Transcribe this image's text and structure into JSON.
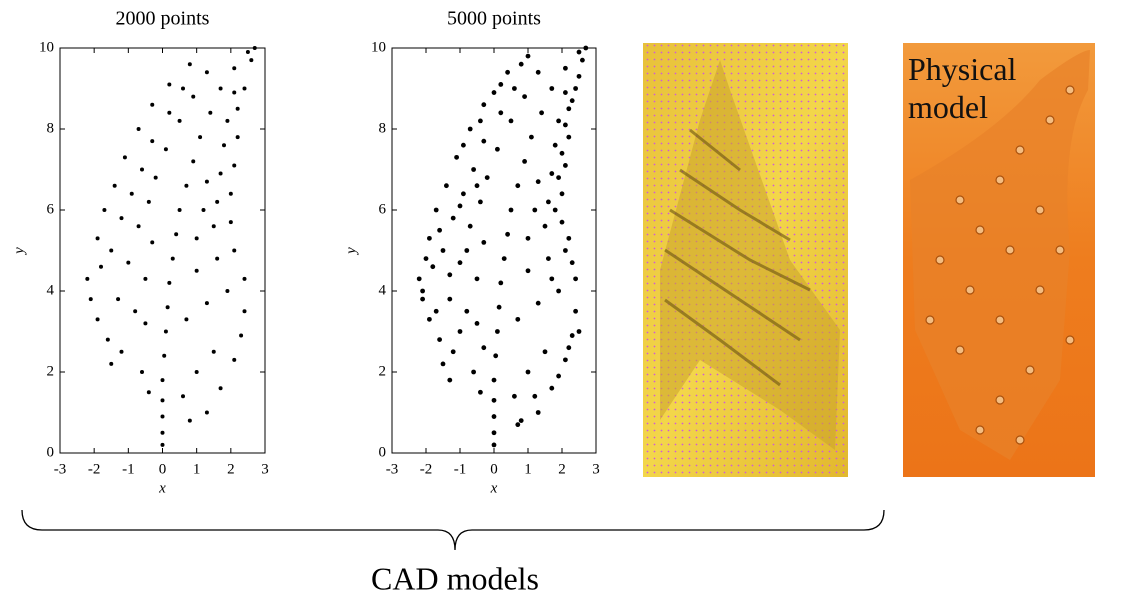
{
  "chart_data": [
    {
      "type": "scatter",
      "title": "2000 points",
      "xlabel": "x",
      "ylabel": "y",
      "color": "#000000",
      "xlim": [
        -3,
        3
      ],
      "ylim": [
        0,
        10
      ],
      "xticks": [
        -3,
        -2,
        -1,
        0,
        1,
        2,
        3
      ],
      "yticks": [
        0,
        2,
        4,
        6,
        8,
        10
      ],
      "x": [
        0,
        0,
        0,
        0,
        0,
        0.05,
        0.1,
        0.15,
        0.2,
        0.3,
        0.4,
        0.5,
        0.7,
        0.9,
        1.1,
        1.4,
        1.7,
        2.1,
        2.5,
        -2.2,
        -2.1,
        -1.9,
        -1.6,
        -1.5,
        -1.8,
        -1.3,
        -0.8,
        -0.5,
        -1.2,
        -0.6,
        -0.4,
        -1.9,
        -1.5,
        -1.0,
        -0.5,
        -1.7,
        -1.2,
        -0.7,
        -0.3,
        -1.4,
        -0.9,
        -0.4,
        -1.1,
        -0.6,
        -0.2,
        -0.7,
        -0.3,
        0.1,
        -0.3,
        0.2,
        0.5,
        0.2,
        0.6,
        0.9,
        0.8,
        1.3,
        2.4,
        2.3,
        2.1,
        1.7,
        1.3,
        0.8,
        1.5,
        1.0,
        0.6,
        2.4,
        1.9,
        1.3,
        0.7,
        2.1,
        1.6,
        1.0,
        2.0,
        1.5,
        1.0,
        2.0,
        1.6,
        1.2,
        2.1,
        1.7,
        1.3,
        2.2,
        1.8,
        2.2,
        1.9,
        2.4,
        2.1,
        2.6,
        2.7
      ],
      "values": [
        0.2,
        0.5,
        0.9,
        1.3,
        1.8,
        2.4,
        3,
        3.6,
        4.2,
        4.8,
        5.4,
        6,
        6.6,
        7.2,
        7.8,
        8.4,
        9,
        9.5,
        9.9,
        4.3,
        3.8,
        3.3,
        2.8,
        2.2,
        4.6,
        3.8,
        3.5,
        3.2,
        2.5,
        2.0,
        1.5,
        5.3,
        5.0,
        4.7,
        4.3,
        6.0,
        5.8,
        5.6,
        5.2,
        6.6,
        6.4,
        6.2,
        7.3,
        7.0,
        6.8,
        8.0,
        7.7,
        7.5,
        8.6,
        8.4,
        8.2,
        9.1,
        9.0,
        8.8,
        9.6,
        9.4,
        3.5,
        2.9,
        2.3,
        1.6,
        1.0,
        0.8,
        2.5,
        2.0,
        1.4,
        4.3,
        4.0,
        3.7,
        3.3,
        5.0,
        4.8,
        4.5,
        5.7,
        5.6,
        5.3,
        6.4,
        6.2,
        6.0,
        7.1,
        6.9,
        6.7,
        7.8,
        7.6,
        8.5,
        8.2,
        9.0,
        8.9,
        9.7,
        10
      ]
    },
    {
      "type": "scatter",
      "title": "5000 points",
      "xlabel": "x",
      "ylabel": "y",
      "color": "#000000",
      "xlim": [
        -3,
        3
      ],
      "ylim": [
        0,
        10
      ],
      "xticks": [
        -3,
        -2,
        -1,
        0,
        1,
        2,
        3
      ],
      "yticks": [
        0,
        2,
        4,
        6,
        8,
        10
      ],
      "x": [
        0,
        0,
        0,
        0,
        0,
        0.05,
        0.1,
        0.15,
        0.2,
        0.3,
        0.4,
        0.5,
        0.7,
        0.9,
        1.1,
        1.4,
        1.7,
        2.1,
        2.5,
        -2.2,
        -2.1,
        -1.9,
        -1.6,
        -1.5,
        -1.8,
        -1.3,
        -0.8,
        -0.5,
        -1.2,
        -0.6,
        -0.4,
        -1.9,
        -1.5,
        -1.0,
        -0.5,
        -1.7,
        -1.2,
        -0.7,
        -0.3,
        -1.4,
        -0.9,
        -0.4,
        -1.1,
        -0.6,
        -0.2,
        -0.7,
        -0.3,
        0.1,
        -0.3,
        0.2,
        0.5,
        0.2,
        0.6,
        0.9,
        0.8,
        1.3,
        2.4,
        2.3,
        2.1,
        1.7,
        1.3,
        0.8,
        1.5,
        1.0,
        0.6,
        2.4,
        1.9,
        1.3,
        0.7,
        2.1,
        1.6,
        1.0,
        2.0,
        1.5,
        1.0,
        2.0,
        1.6,
        1.2,
        2.1,
        1.7,
        1.3,
        2.2,
        1.8,
        2.2,
        1.9,
        2.4,
        2.1,
        2.6,
        2.7,
        -2.1,
        -1.7,
        -1.0,
        -0.3,
        -1.3,
        -2.0,
        -1.3,
        -0.8,
        -1.6,
        -1.0,
        -0.5,
        -0.9,
        -0.4,
        0.0,
        0.4,
        1.0,
        2.5,
        2.2,
        1.9,
        1.2,
        0.7,
        2.3,
        1.7,
        2.2,
        1.8,
        1.9,
        2.0,
        2.1,
        2.3,
        2.5
      ],
      "values": [
        0.2,
        0.5,
        0.9,
        1.3,
        1.8,
        2.4,
        3,
        3.6,
        4.2,
        4.8,
        5.4,
        6,
        6.6,
        7.2,
        7.8,
        8.4,
        9,
        9.5,
        9.9,
        4.3,
        3.8,
        3.3,
        2.8,
        2.2,
        4.6,
        3.8,
        3.5,
        3.2,
        2.5,
        2.0,
        1.5,
        5.3,
        5.0,
        4.7,
        4.3,
        6.0,
        5.8,
        5.6,
        5.2,
        6.6,
        6.4,
        6.2,
        7.3,
        7.0,
        6.8,
        8.0,
        7.7,
        7.5,
        8.6,
        8.4,
        8.2,
        9.1,
        9.0,
        8.8,
        9.6,
        9.4,
        3.5,
        2.9,
        2.3,
        1.6,
        1.0,
        0.8,
        2.5,
        2.0,
        1.4,
        4.3,
        4.0,
        3.7,
        3.3,
        5.0,
        4.8,
        4.5,
        5.7,
        5.6,
        5.3,
        6.4,
        6.2,
        6.0,
        7.1,
        6.9,
        6.7,
        7.8,
        7.6,
        8.5,
        8.2,
        9.0,
        8.9,
        9.7,
        10,
        4.0,
        3.5,
        3.0,
        2.6,
        1.8,
        4.8,
        4.4,
        5.0,
        5.5,
        6.1,
        6.6,
        7.6,
        8.2,
        8.9,
        9.4,
        9.8,
        3.0,
        2.6,
        1.9,
        1.4,
        0.7,
        4.7,
        4.3,
        5.3,
        6.0,
        6.8,
        7.4,
        8.1,
        8.7,
        9.3
      ]
    }
  ],
  "photo_label": "Physical model",
  "group_label": "CAD models"
}
